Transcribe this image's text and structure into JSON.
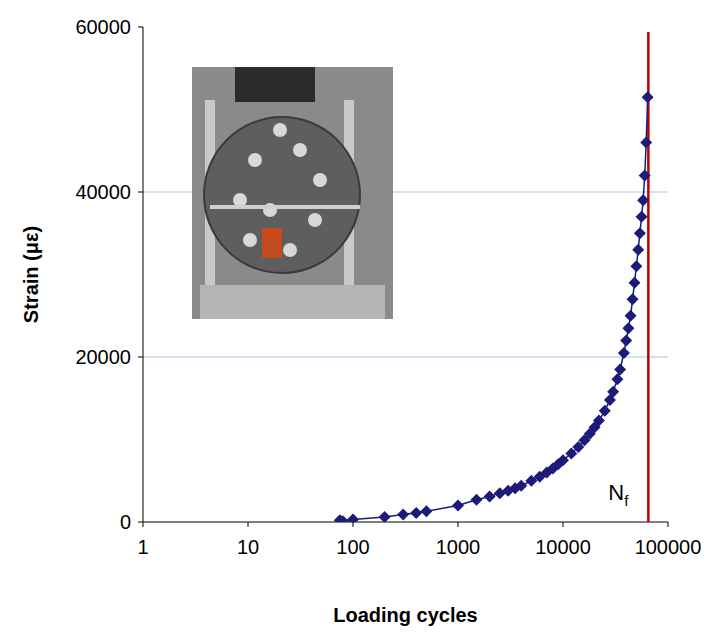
{
  "chart_data": {
    "type": "line",
    "x_label": "Loading cycles",
    "y_label": "Strain (με)",
    "log": "x",
    "grid": true,
    "marker": "diamond",
    "xlim": [
      1,
      100000
    ],
    "ylim": [
      0,
      60000
    ],
    "xticks": [
      1,
      10,
      100,
      1000,
      10000,
      100000
    ],
    "yticks": [
      0,
      20000,
      40000,
      60000
    ],
    "x": [
      75,
      80,
      100,
      200,
      300,
      400,
      500,
      1000,
      1500,
      2000,
      2500,
      3000,
      3500,
      4000,
      5000,
      6000,
      7000,
      8000,
      9000,
      10000,
      12000,
      14000,
      16000,
      18000,
      20000,
      22000,
      25000,
      28000,
      30000,
      33000,
      35000,
      38000,
      40000,
      42000,
      44000,
      46000,
      48000,
      50000,
      52000,
      54000,
      56000,
      58000,
      60000,
      62000,
      64000
    ],
    "series": [
      {
        "name": "Strain",
        "color": "#1c1c78",
        "values": [
          200,
          100,
          300,
          600,
          900,
          1100,
          1300,
          2000,
          2700,
          3100,
          3500,
          3800,
          4100,
          4400,
          5000,
          5500,
          6000,
          6500,
          7000,
          7500,
          8300,
          9100,
          9900,
          10700,
          11500,
          12300,
          13500,
          14800,
          15800,
          17300,
          18500,
          20500,
          22000,
          23500,
          25000,
          27000,
          29000,
          31000,
          33000,
          35000,
          37000,
          39000,
          42000,
          46000,
          51500
        ]
      }
    ],
    "reference_line": {
      "x": 65000,
      "label": "N",
      "label_subscript": "f",
      "color": "#c00000"
    }
  }
}
